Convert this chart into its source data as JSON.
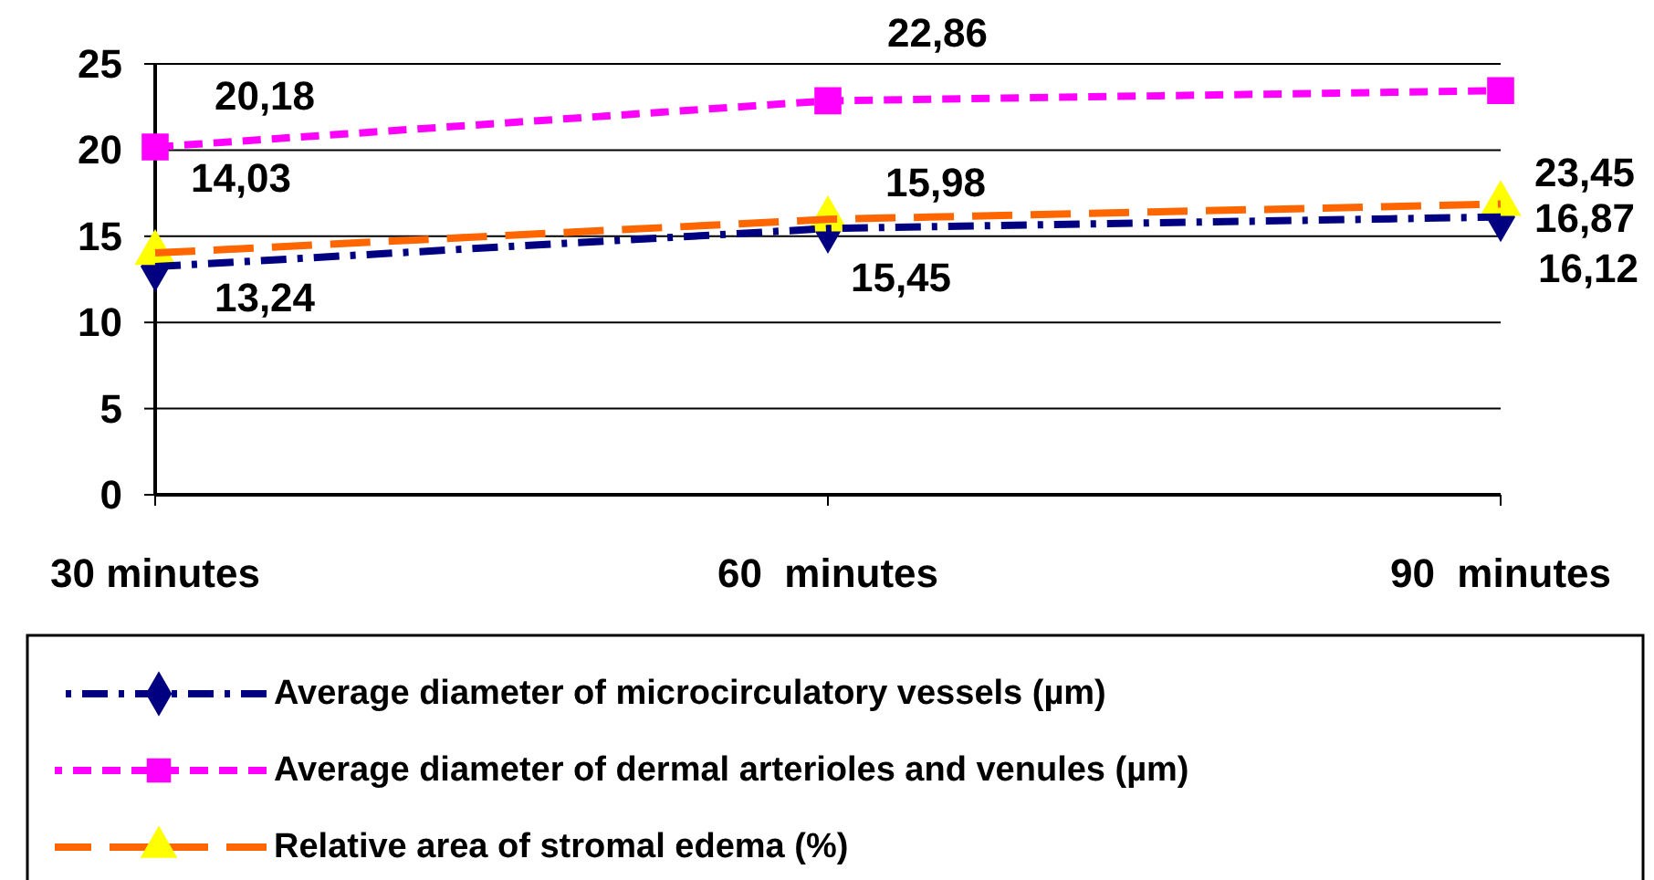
{
  "chart_data": {
    "type": "line",
    "categories": [
      "30 minutes",
      "60  minutes",
      "90  minutes"
    ],
    "ylim": [
      0,
      25
    ],
    "yticks": [
      0,
      5,
      10,
      15,
      20,
      25
    ],
    "grid": "y",
    "legend": "bottom",
    "line_style": "dashed",
    "series": [
      {
        "name": "Average diameter of microcirculatory vessels (µm)",
        "color": "#000080",
        "marker": "diamond",
        "values": [
          13.24,
          15.45,
          16.12
        ],
        "value_labels": [
          "13,24",
          "15,45",
          "16,12"
        ]
      },
      {
        "name": "Average diameter of dermal arterioles and venules (µm)",
        "color": "#ff00ff",
        "marker": "square",
        "values": [
          20.18,
          22.86,
          23.45
        ],
        "value_labels": [
          "20,18",
          "22,86",
          "23,45"
        ]
      },
      {
        "name": "Relative area of stromal edema (%)",
        "color": "#ff6600",
        "colors": [
          "#ffff00",
          "#ffff00",
          "#ffff00"
        ],
        "marker": "triangle",
        "values": [
          14.03,
          15.98,
          16.87
        ],
        "value_labels": [
          "14,03",
          "15,98",
          "16,87"
        ]
      }
    ]
  }
}
